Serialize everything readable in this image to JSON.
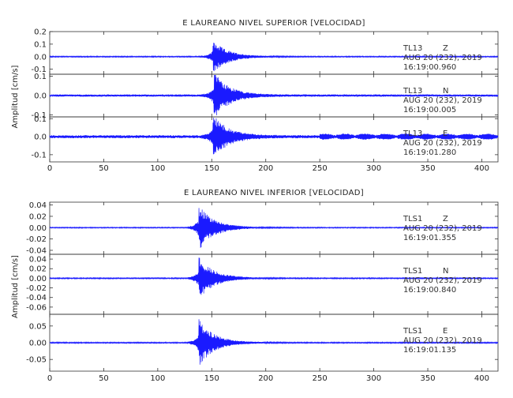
{
  "colors": {
    "trace": "#1a1aff",
    "frame": "#333333",
    "text": "#222222"
  },
  "chart_data": [
    {
      "type": "line",
      "title": "E LAUREANO NIVEL SUPERIOR [VELOCIDAD]",
      "ylabel": "Amplitud [cm/s]",
      "xlabel": "",
      "xlim": [
        0,
        415
      ],
      "xticks": [
        0,
        50,
        100,
        150,
        200,
        250,
        300,
        350,
        400
      ],
      "grid": false,
      "panels": [
        {
          "station": "TL13",
          "component": "Z",
          "date": "AUG 20 (232), 2019",
          "time": "16:19:00.960",
          "ylim": [
            -0.14,
            0.2
          ],
          "yticks": [
            0.2,
            0.1,
            0.0,
            -0.1
          ],
          "ytick_labels": [
            "0.2",
            "0.1",
            "0.0",
            "-0.1"
          ],
          "event_onset": 140,
          "peak_time": 151,
          "peak_amplitude": 0.13,
          "noise_level": 0.003
        },
        {
          "station": "TL13",
          "component": "N",
          "date": "AUG 20 (232), 2019",
          "time": "16:19:00.005",
          "ylim": [
            -0.11,
            0.11
          ],
          "yticks": [
            0.1,
            0.0,
            -0.1
          ],
          "ytick_labels": [
            "0.1",
            "0.0",
            "-0.1"
          ],
          "event_onset": 140,
          "peak_time": 152,
          "peak_amplitude": 0.12,
          "noise_level": 0.004
        },
        {
          "station": "TL13",
          "component": "E",
          "date": "AUG 20 (232), 2019",
          "time": "16:19:01.280",
          "ylim": [
            -0.14,
            0.11
          ],
          "yticks": [
            0.1,
            0.0,
            -0.1
          ],
          "ytick_labels": [
            "0.1",
            "0.0",
            "-0.1"
          ],
          "event_onset": 140,
          "peak_time": 151,
          "peak_amplitude": 0.12,
          "noise_level": 0.006
        }
      ]
    },
    {
      "type": "line",
      "title": "E LAUREANO NIVEL INFERIOR [VELOCIDAD]",
      "ylabel": "Amplitud [cm/s]",
      "xlabel": "",
      "xlim": [
        0,
        415
      ],
      "xticks": [
        0,
        50,
        100,
        150,
        200,
        250,
        300,
        350,
        400
      ],
      "grid": false,
      "panels": [
        {
          "station": "TLS1",
          "component": "Z",
          "date": "AUG 20 (232), 2019",
          "time": "16:19:01.355",
          "ylim": [
            -0.047,
            0.045
          ],
          "yticks": [
            0.04,
            0.02,
            0.0,
            -0.02,
            -0.04
          ],
          "ytick_labels": [
            "0.04",
            "0.02",
            "0.00",
            "-0.02",
            "-0.04"
          ],
          "event_onset": 128,
          "peak_time": 138,
          "peak_amplitude": 0.04,
          "noise_level": 0.0006
        },
        {
          "station": "TLS1",
          "component": "N",
          "date": "AUG 20 (232), 2019",
          "time": "16:19:00.840",
          "ylim": [
            -0.075,
            0.05
          ],
          "yticks": [
            0.04,
            0.02,
            0.0,
            -0.02,
            -0.04,
            -0.06
          ],
          "ytick_labels": [
            "0.04",
            "0.02",
            "0.00",
            "-0.02",
            "-0.04",
            "-0.06"
          ],
          "event_onset": 128,
          "peak_time": 138,
          "peak_amplitude": 0.045,
          "noise_level": 0.0008
        },
        {
          "station": "TLS1",
          "component": "E",
          "date": "AUG 20 (232), 2019",
          "time": "16:19:01.135",
          "ylim": [
            -0.085,
            0.085
          ],
          "yticks": [
            0.05,
            0.0,
            -0.05
          ],
          "ytick_labels": [
            "0.05",
            "0.00",
            "-0.05"
          ],
          "event_onset": 128,
          "peak_time": 138,
          "peak_amplitude": 0.07,
          "noise_level": 0.0012
        }
      ]
    }
  ]
}
